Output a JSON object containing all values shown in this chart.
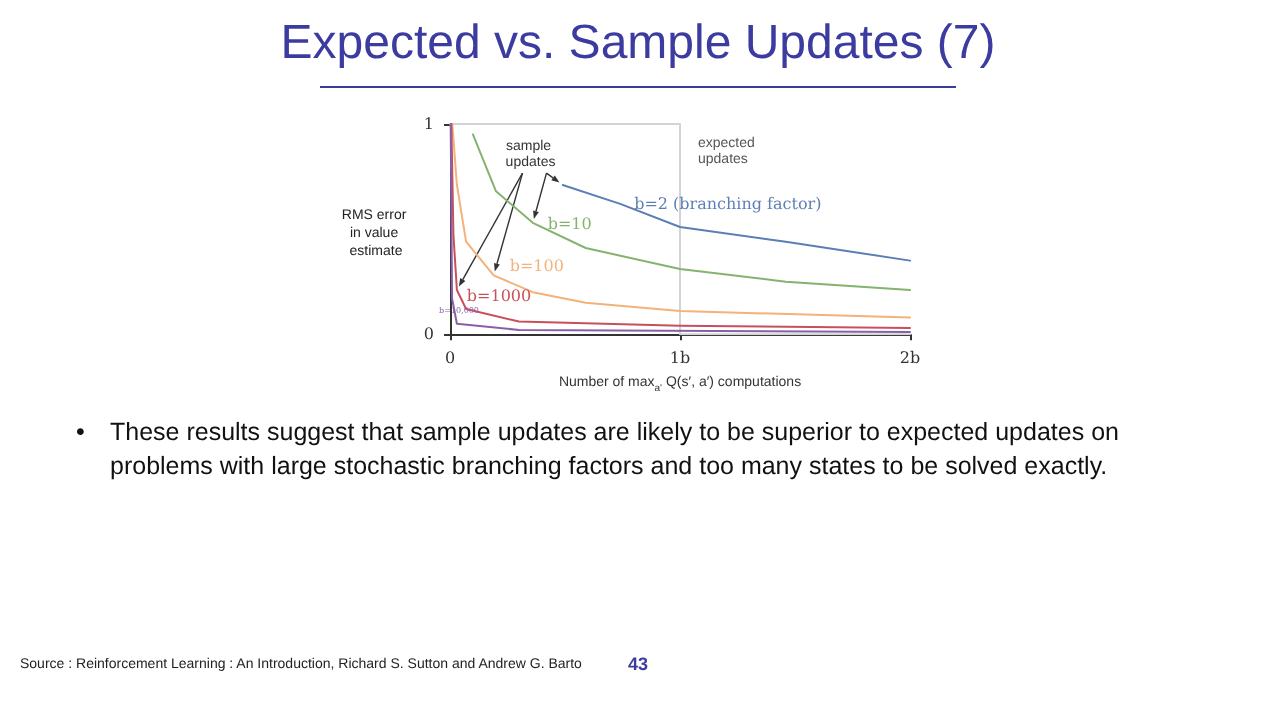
{
  "chart_data": {
    "type": "line",
    "title": "Expected vs. Sample Updates (7)",
    "xlabel": "Number of max$_{a'}$ Q(s′, a′) computations",
    "ylabel": "RMS error in value estimate",
    "xlim": [
      0,
      2
    ],
    "xticks": [
      0,
      {
        "value": 1,
        "label": "1b"
      },
      {
        "value": 2,
        "label": "2b"
      }
    ],
    "ylim": [
      0,
      1
    ],
    "yticks": [
      0,
      1
    ],
    "grid": false,
    "legend": false,
    "marker": "none",
    "line_style": "solid",
    "series": [
      {
        "name": "expected updates",
        "color": "#d3d3d3",
        "x": [
          0,
          1,
          1,
          2
        ],
        "values": [
          1,
          1,
          0,
          0
        ]
      },
      {
        "name": "b=2 (branching factor)",
        "color": "#5b7fb5",
        "x": [
          0.49,
          0.74,
          1.0,
          1.46,
          2.0
        ],
        "values": [
          0.71,
          0.62,
          0.51,
          0.44,
          0.35
        ]
      },
      {
        "name": "b=10",
        "color": "#84b36e",
        "x": [
          0.1,
          0.2,
          0.36,
          0.59,
          1,
          1.46,
          2
        ],
        "values": [
          0.95,
          0.68,
          0.53,
          0.41,
          0.31,
          0.25,
          0.21
        ]
      },
      {
        "name": "b=100",
        "color": "#f2b27a",
        "x": [
          0.01,
          0.03,
          0.07,
          0.19,
          0.36,
          0.59,
          1,
          2
        ],
        "values": [
          1.0,
          0.71,
          0.44,
          0.28,
          0.2,
          0.15,
          0.11,
          0.08
        ]
      },
      {
        "name": "b=1000",
        "color": "#c8505a",
        "x": [
          0.006,
          0.015,
          0.03,
          0.07,
          0.3,
          1,
          2
        ],
        "values": [
          1,
          0.47,
          0.21,
          0.12,
          0.06,
          0.04,
          0.03
        ]
      },
      {
        "name": "b=10,000",
        "color": "#8a5fa8",
        "x": [
          0.003,
          0.009,
          0.03,
          0.3,
          2
        ],
        "values": [
          1,
          0.17,
          0.05,
          0.02,
          0.01
        ]
      }
    ],
    "annotations": [
      {
        "text": "sample updates",
        "x": 0.36,
        "y": 0.53
      },
      "• These results suggest that sample updates are likely to be superior to expected updates on problems with large stochastic branching factors and too many states to be solved exactly.",
      "Source : Reinforcement Learning : An Introduction, Richard S. Sutton and Andrew G. Barto",
      "43"
    ]
  }
}
